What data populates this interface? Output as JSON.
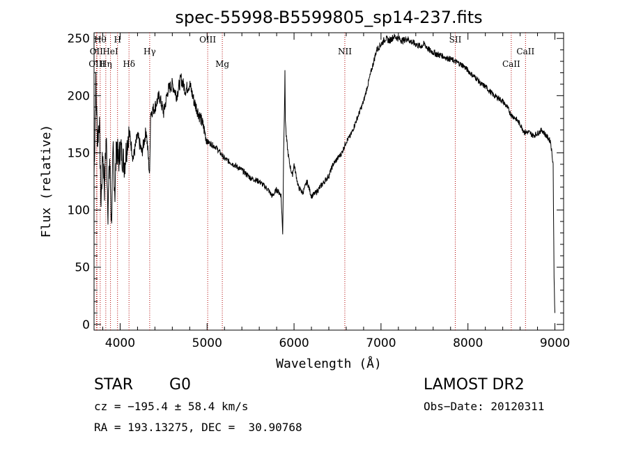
{
  "chart_data": {
    "type": "line",
    "title": "spec-55998-B5599805_sp14-237.fits",
    "xlabel": "Wavelength (Å)",
    "ylabel": "Flux (relative)",
    "xlim": [
      3700,
      9100
    ],
    "ylim": [
      -5,
      255
    ],
    "xticks": [
      4000,
      5000,
      6000,
      7000,
      8000,
      9000
    ],
    "yticks": [
      0,
      50,
      100,
      150,
      200,
      250
    ],
    "grid": false,
    "series": [
      {
        "x": [
          3700,
          3720,
          3740,
          3760,
          3780,
          3800,
          3820,
          3840,
          3860,
          3880,
          3900,
          3920,
          3940,
          3960,
          3980,
          4000,
          4050,
          4100,
          4150,
          4200,
          4250,
          4300,
          4340,
          4350,
          4400,
          4450,
          4500,
          4550,
          4600,
          4650,
          4700,
          4750,
          4800,
          4850,
          4900,
          4950,
          5000,
          5100,
          5200,
          5300,
          5400,
          5500,
          5600,
          5700,
          5750,
          5800,
          5850,
          5870,
          5880,
          5890,
          5895,
          5900,
          5910,
          5930,
          5950,
          5980,
          6000,
          6050,
          6100,
          6150,
          6200,
          6250,
          6300,
          6350,
          6400,
          6450,
          6500,
          6550,
          6600,
          6650,
          6700,
          6750,
          6800,
          6850,
          6900,
          6950,
          7000,
          7050,
          7100,
          7150,
          7200,
          7250,
          7300,
          7350,
          7400,
          7450,
          7500,
          7550,
          7600,
          7650,
          7700,
          7750,
          7800,
          7850,
          7900,
          7950,
          8000,
          8050,
          8100,
          8150,
          8200,
          8250,
          8300,
          8350,
          8400,
          8450,
          8500,
          8550,
          8600,
          8650,
          8700,
          8750,
          8800,
          8850,
          8900,
          8950,
          8980,
          8990,
          9000
        ],
        "values": [
          130,
          210,
          160,
          180,
          105,
          150,
          120,
          165,
          100,
          145,
          90,
          150,
          115,
          160,
          140,
          155,
          140,
          170,
          145,
          165,
          150,
          170,
          130,
          185,
          190,
          200,
          185,
          205,
          210,
          200,
          215,
          205,
          210,
          195,
          185,
          175,
          160,
          155,
          145,
          140,
          135,
          128,
          125,
          118,
          112,
          118,
          113,
          80,
          150,
          190,
          220,
          180,
          165,
          150,
          140,
          130,
          140,
          120,
          115,
          125,
          112,
          115,
          120,
          125,
          130,
          140,
          145,
          150,
          160,
          165,
          175,
          185,
          195,
          210,
          225,
          240,
          245,
          250,
          248,
          252,
          250,
          248,
          250,
          247,
          245,
          243,
          245,
          240,
          238,
          236,
          235,
          233,
          232,
          230,
          228,
          226,
          222,
          218,
          215,
          210,
          208,
          204,
          200,
          198,
          195,
          190,
          183,
          180,
          175,
          168,
          168,
          165,
          167,
          170,
          165,
          160,
          140,
          40,
          10
        ]
      }
    ],
    "lines": [
      {
        "x": 3727,
        "label": "OII",
        "row": 2
      },
      {
        "x": 3734,
        "label": "OIII",
        "row": 3
      },
      {
        "x": 3771,
        "label": "Hθ",
        "row": 1
      },
      {
        "x": 3835,
        "label": "Hη",
        "row": 3
      },
      {
        "x": 3889,
        "label": "HeI",
        "row": 2
      },
      {
        "x": 3970,
        "label": "H",
        "row": 1
      },
      {
        "x": 4102,
        "label": "Hδ",
        "row": 3
      },
      {
        "x": 4340,
        "label": "Hγ",
        "row": 2
      },
      {
        "x": 5007,
        "label": "OIII",
        "row": 1
      },
      {
        "x": 5175,
        "label": "Mg",
        "row": 3
      },
      {
        "x": 6584,
        "label": "NII",
        "row": 2
      },
      {
        "x": 7854,
        "label": "SII",
        "row": 1
      },
      {
        "x": 8498,
        "label": "CaII",
        "row": 3
      },
      {
        "x": 8662,
        "label": "CaII",
        "row": 2
      }
    ]
  },
  "info": {
    "object_class": "STAR",
    "subclass": "G0",
    "survey": "LAMOST DR2",
    "cz": "cz = −195.4 ± 58.4 km/s",
    "obs_date": "Obs−Date: 20120311",
    "coords": "RA = 193.13275, DEC =  30.90768"
  },
  "colors": {
    "spectrum": "#000000",
    "line_marker": "#b00000"
  }
}
